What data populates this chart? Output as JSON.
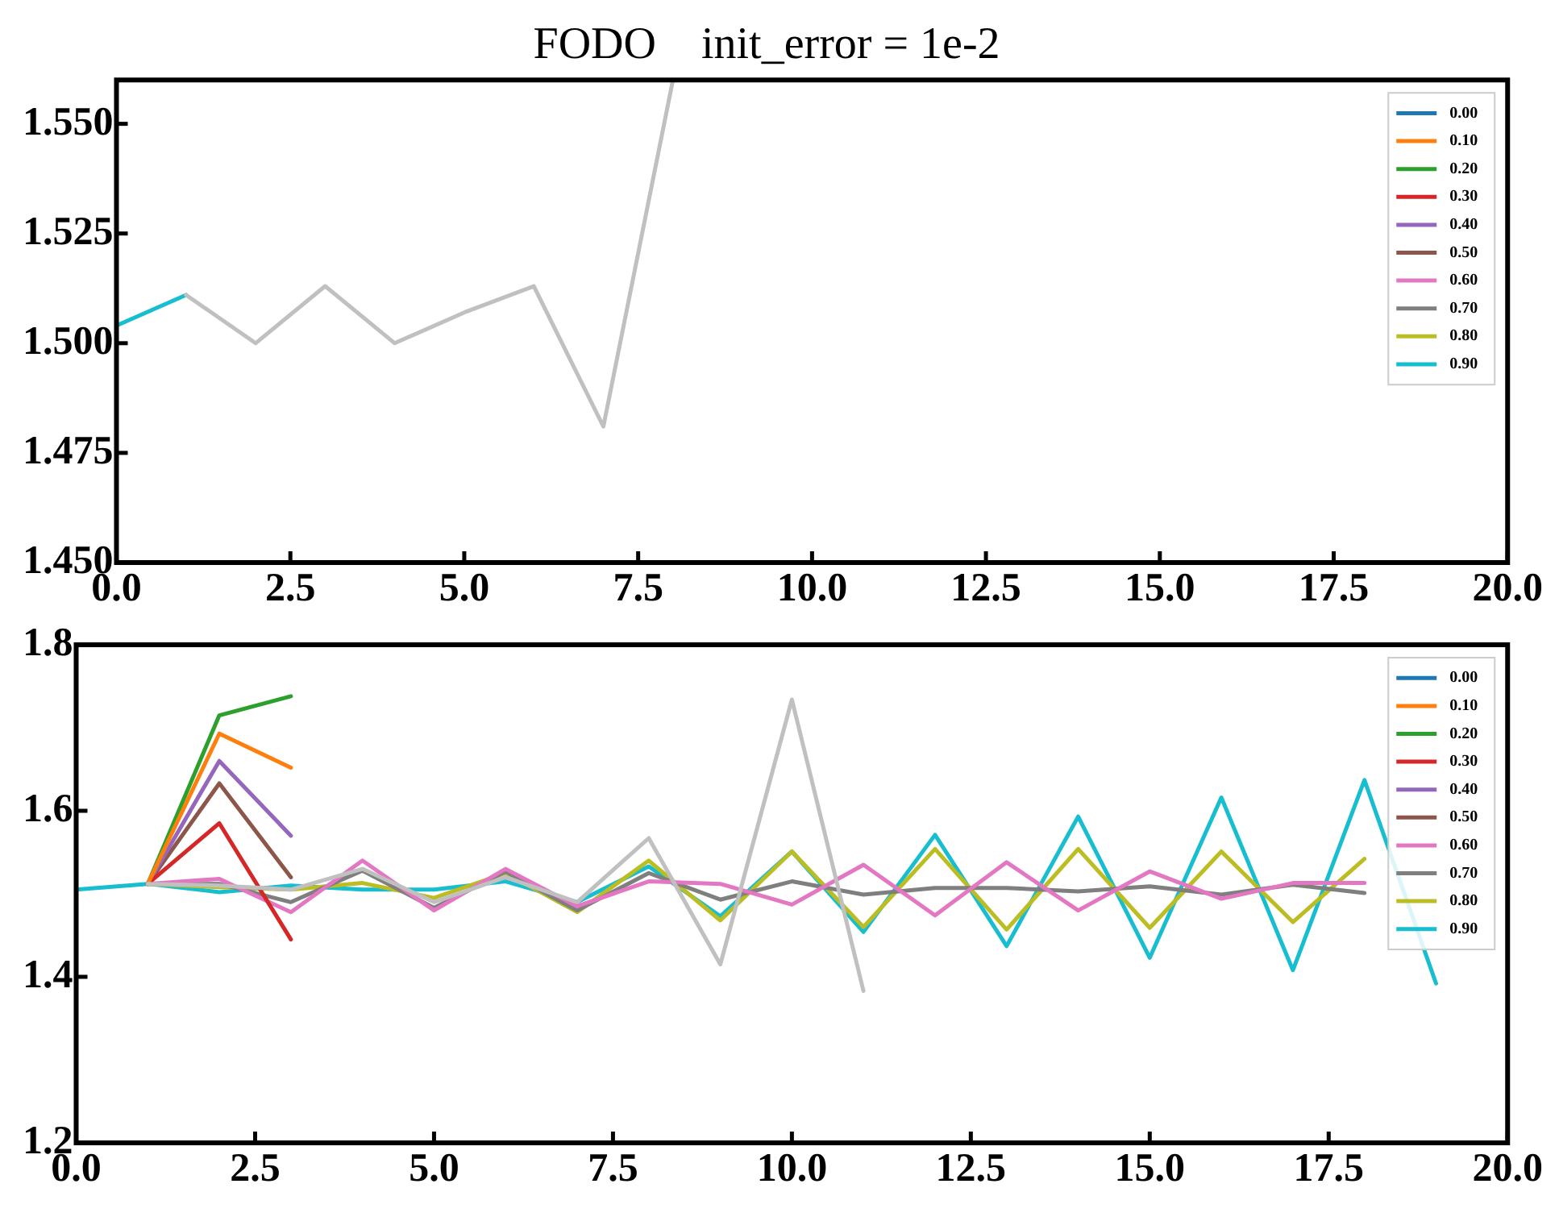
{
  "chart_data": [
    {
      "type": "line",
      "title": "FODO    init_error = 1e-2",
      "x": [
        0,
        1,
        2,
        3,
        4,
        5,
        6,
        7,
        8
      ],
      "xlim": [
        0,
        20
      ],
      "xticks": [
        {
          "value": 0,
          "label": "0.0"
        },
        {
          "value": 2.5,
          "label": "2.5"
        },
        {
          "value": 5,
          "label": "5.0"
        },
        {
          "value": 7.5,
          "label": "7.5"
        },
        {
          "value": 10,
          "label": "10.0"
        },
        {
          "value": 12.5,
          "label": "12.5"
        },
        {
          "value": 15,
          "label": "15.0"
        },
        {
          "value": 17.5,
          "label": "17.5"
        },
        {
          "value": 20,
          "label": "20.0"
        }
      ],
      "ylim": [
        1.45,
        1.56
      ],
      "yticks": [
        {
          "value": 1.45,
          "label": "1.450"
        },
        {
          "value": 1.475,
          "label": "1.475"
        },
        {
          "value": 1.5,
          "label": "1.500"
        },
        {
          "value": 1.525,
          "label": "1.525"
        },
        {
          "value": 1.55,
          "label": "1.550"
        }
      ],
      "legend": "top right",
      "grid": false,
      "series": [
        {
          "color": "#c0c0c0",
          "values": [
            null,
            1.511,
            1.5,
            1.513,
            1.5,
            1.507,
            1.513,
            1.481,
            1.56
          ]
        },
        {
          "name": "0.00",
          "color": "#1f77b4",
          "values": [
            null,
            null,
            null,
            null,
            null,
            null,
            null,
            null,
            null
          ]
        },
        {
          "name": "0.10",
          "color": "#ff7f0e",
          "values": [
            null,
            null,
            null,
            null,
            null,
            null,
            null,
            null,
            null
          ]
        },
        {
          "name": "0.20",
          "color": "#2ca02c",
          "values": [
            null,
            null,
            null,
            null,
            null,
            null,
            null,
            null,
            null
          ]
        },
        {
          "name": "0.30",
          "color": "#d62728",
          "values": [
            null,
            null,
            null,
            null,
            null,
            null,
            null,
            null,
            null
          ]
        },
        {
          "name": "0.40",
          "color": "#9467bd",
          "values": [
            null,
            null,
            null,
            null,
            null,
            null,
            null,
            null,
            null
          ]
        },
        {
          "name": "0.50",
          "color": "#8c564b",
          "values": [
            null,
            null,
            null,
            null,
            null,
            null,
            null,
            null,
            null
          ]
        },
        {
          "name": "0.60",
          "color": "#e377c2",
          "values": [
            null,
            null,
            null,
            null,
            null,
            null,
            null,
            null,
            null
          ]
        },
        {
          "name": "0.70",
          "color": "#7f7f7f",
          "values": [
            null,
            null,
            null,
            null,
            null,
            null,
            null,
            null,
            null
          ]
        },
        {
          "name": "0.80",
          "color": "#bcbd22",
          "values": [
            null,
            null,
            null,
            null,
            null,
            null,
            null,
            null,
            null
          ]
        },
        {
          "name": "0.90",
          "color": "#17becf",
          "values": [
            1.504,
            1.511,
            null,
            null,
            null,
            null,
            null,
            null,
            null
          ]
        }
      ]
    },
    {
      "type": "line",
      "x": [
        0,
        1,
        2,
        3,
        4,
        5,
        6,
        7,
        8,
        9,
        10,
        11,
        12,
        13,
        14,
        15,
        16,
        17,
        18,
        19
      ],
      "xlim": [
        0,
        20
      ],
      "xticks": [
        {
          "value": 0,
          "label": "0.0"
        },
        {
          "value": 2.5,
          "label": "2.5"
        },
        {
          "value": 5,
          "label": "5.0"
        },
        {
          "value": 7.5,
          "label": "7.5"
        },
        {
          "value": 10,
          "label": "10.0"
        },
        {
          "value": 12.5,
          "label": "12.5"
        },
        {
          "value": 15,
          "label": "15.0"
        },
        {
          "value": 17.5,
          "label": "17.5"
        },
        {
          "value": 20,
          "label": "20.0"
        }
      ],
      "ylim": [
        1.2,
        1.8
      ],
      "yticks": [
        1.2,
        1.4,
        1.6,
        1.8
      ],
      "legend": "top right",
      "grid": false,
      "series": [
        {
          "color": "#c0c0c0",
          "values": [
            null,
            1.512,
            1.51,
            1.505,
            1.53,
            1.49,
            1.52,
            1.49,
            1.567,
            1.415,
            1.734,
            1.383,
            null,
            null,
            null,
            null,
            null,
            null,
            null,
            null
          ]
        },
        {
          "name": "0.00",
          "color": "#1f77b4",
          "values": [
            null,
            null,
            null,
            null,
            null,
            null,
            null,
            null,
            null,
            null,
            null,
            null,
            null,
            null,
            null,
            null,
            null,
            null,
            null,
            null
          ]
        },
        {
          "name": "0.10",
          "color": "#ff7f0e",
          "values": [
            null,
            1.512,
            1.693,
            1.652,
            null,
            null,
            null,
            null,
            null,
            null,
            null,
            null,
            null,
            null,
            null,
            null,
            null,
            null,
            null,
            null
          ]
        },
        {
          "name": "0.20",
          "color": "#2ca02c",
          "values": [
            null,
            1.512,
            1.715,
            1.738,
            null,
            null,
            null,
            null,
            null,
            null,
            null,
            null,
            null,
            null,
            null,
            null,
            null,
            null,
            null,
            null
          ]
        },
        {
          "name": "0.30",
          "color": "#d62728",
          "values": [
            null,
            1.512,
            1.585,
            1.445,
            null,
            null,
            null,
            null,
            null,
            null,
            null,
            null,
            null,
            null,
            null,
            null,
            null,
            null,
            null,
            null
          ]
        },
        {
          "name": "0.40",
          "color": "#9467bd",
          "values": [
            null,
            1.512,
            1.66,
            1.57,
            null,
            null,
            null,
            null,
            null,
            null,
            null,
            null,
            null,
            null,
            null,
            null,
            null,
            null,
            null,
            null
          ]
        },
        {
          "name": "0.50",
          "color": "#8c564b",
          "values": [
            null,
            1.512,
            1.633,
            1.52,
            null,
            null,
            null,
            null,
            null,
            null,
            null,
            null,
            null,
            null,
            null,
            null,
            null,
            null,
            null,
            null
          ]
        },
        {
          "name": "0.60",
          "color": "#e377c2",
          "values": [
            null,
            1.512,
            1.518,
            1.478,
            1.54,
            1.48,
            1.53,
            1.485,
            1.515,
            1.512,
            1.487,
            1.535,
            1.474,
            1.538,
            1.48,
            1.527,
            1.494,
            1.513,
            1.513,
            null
          ]
        },
        {
          "name": "0.70",
          "color": "#7f7f7f",
          "values": [
            null,
            1.512,
            1.512,
            1.49,
            1.528,
            1.483,
            1.527,
            1.48,
            1.525,
            1.493,
            1.515,
            1.499,
            1.507,
            1.507,
            1.503,
            1.509,
            1.499,
            1.511,
            1.501,
            null
          ]
        },
        {
          "name": "0.80",
          "color": "#bcbd22",
          "values": [
            null,
            1.512,
            1.508,
            1.505,
            1.513,
            1.495,
            1.525,
            1.478,
            1.54,
            1.468,
            1.551,
            1.46,
            1.554,
            1.457,
            1.554,
            1.459,
            1.551,
            1.466,
            1.542,
            null
          ]
        },
        {
          "name": "0.90",
          "color": "#17becf",
          "values": [
            1.505,
            1.512,
            1.502,
            1.51,
            1.505,
            1.505,
            1.515,
            1.49,
            1.533,
            1.473,
            1.551,
            1.454,
            1.571,
            1.437,
            1.593,
            1.423,
            1.616,
            1.408,
            1.637,
            1.392
          ]
        }
      ]
    }
  ]
}
